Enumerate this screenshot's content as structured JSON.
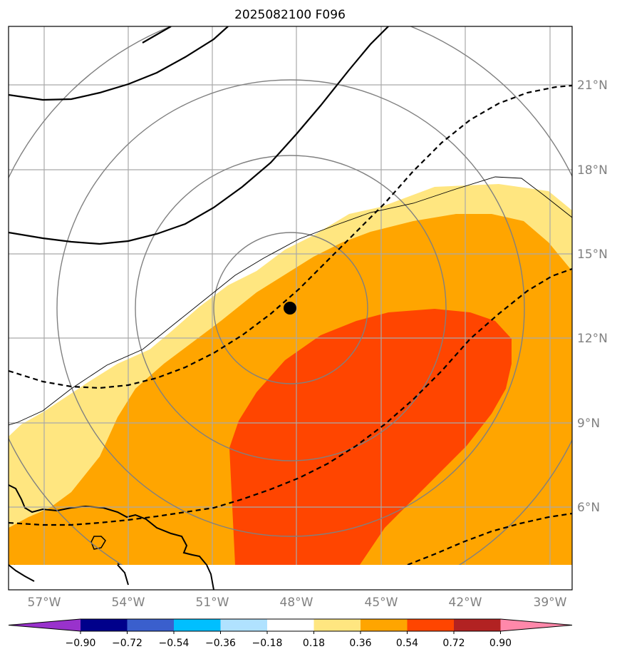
{
  "title": "2025082100 F096",
  "lon_labels": [
    "57°W",
    "54°W",
    "51°W",
    "48°W",
    "45°W",
    "42°W",
    "39°W"
  ],
  "lat_labels": [
    "21°N",
    "18°N",
    "15°N",
    "12°N",
    "9°N",
    "6°N"
  ],
  "colorbar": {
    "ticks": [
      "−0.90",
      "−0.72",
      "−0.54",
      "−0.36",
      "−0.18",
      "0.18",
      "0.36",
      "0.54",
      "0.72",
      "0.90"
    ],
    "colors": [
      "#9932cc",
      "#00008b",
      "#3a5fcd",
      "#00bfff",
      "#b0e2ff",
      "#ffffff",
      "#ffe680",
      "#ffa500",
      "#ff4500",
      "#b22222",
      "#ff88aa"
    ]
  },
  "colors": {
    "level_018_036": "#ffe680",
    "level_036_054": "#ffa500",
    "level_054_072": "#ff4500",
    "contours": "#000000",
    "grid": "#a9a9a9",
    "range_rings": "#808080"
  },
  "storm_center": {
    "lon": "48°W",
    "lat": "13°N"
  }
}
